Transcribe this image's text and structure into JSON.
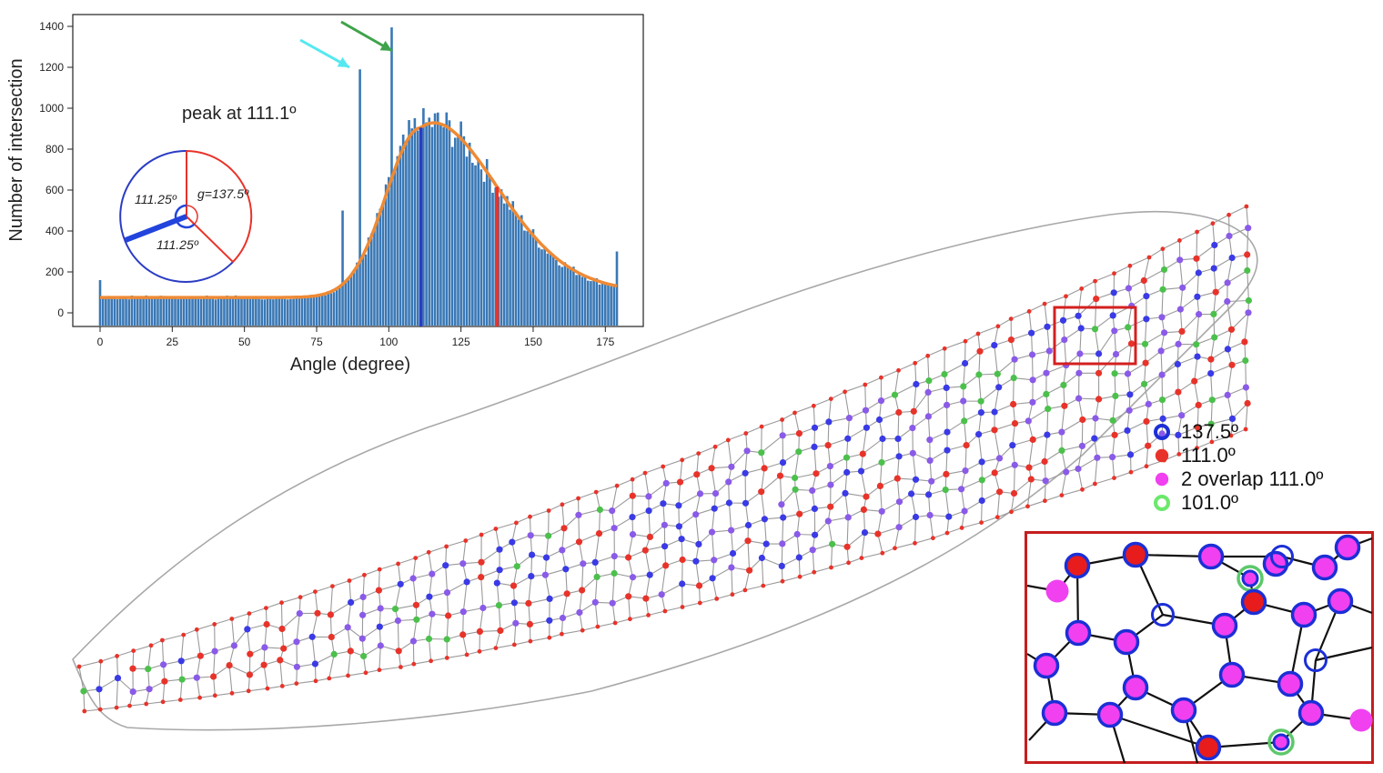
{
  "chart_data": {
    "type": "bar",
    "xlabel": "Angle (degree)",
    "ylabel": "Number of intersection",
    "xlim": [
      -4,
      181
    ],
    "ylim": [
      -70,
      1460
    ],
    "x_ticks": [
      "0",
      "25",
      "50",
      "75",
      "100",
      "125",
      "150",
      "175"
    ],
    "y_ticks": [
      "0",
      "200",
      "400",
      "600",
      "800",
      "1000",
      "1200",
      "1400"
    ],
    "annotation": "peak at  111.1º",
    "fit_peak": 111.1,
    "fit_height": 905,
    "baseline": 75,
    "vlines": [
      {
        "x": 111.1,
        "color": "#2b3cc4"
      },
      {
        "x": 137.5,
        "color": "#e8332a"
      }
    ],
    "bar_color": "#3a78b5",
    "fit_color": "#ee8a35",
    "spikes": [
      {
        "x": 0,
        "value": 160
      },
      {
        "x": 90,
        "value": 1190
      },
      {
        "x": 101,
        "value": 1395
      },
      {
        "x": 84,
        "value": 500
      },
      {
        "x": 179,
        "value": 300
      }
    ],
    "arrows": [
      {
        "color": "#55e8f0",
        "target": 90
      },
      {
        "color": "#3ea34a",
        "target": 101
      }
    ],
    "pie_inset": {
      "labels": [
        "111.25º",
        "g=137.5º",
        "111.25º"
      ]
    }
  },
  "legend": [
    {
      "label": "137.5º",
      "type": "ring",
      "color": "#1c2fd6"
    },
    {
      "label": "111.0º",
      "type": "dot",
      "color": "#e8332a"
    },
    {
      "label": "2 overlap 111.0º",
      "type": "dot",
      "color": "#f040f0"
    },
    {
      "label": "101.0º",
      "type": "ring",
      "color": "#6be86b"
    }
  ],
  "colors": {
    "vein": "#9a9a9a",
    "blue_node": "#3a3ae6",
    "red_node": "#e8332a",
    "violet_node": "#8a5ae8",
    "green_node": "#4cc04c",
    "inset_frame": "#c41e1e"
  }
}
